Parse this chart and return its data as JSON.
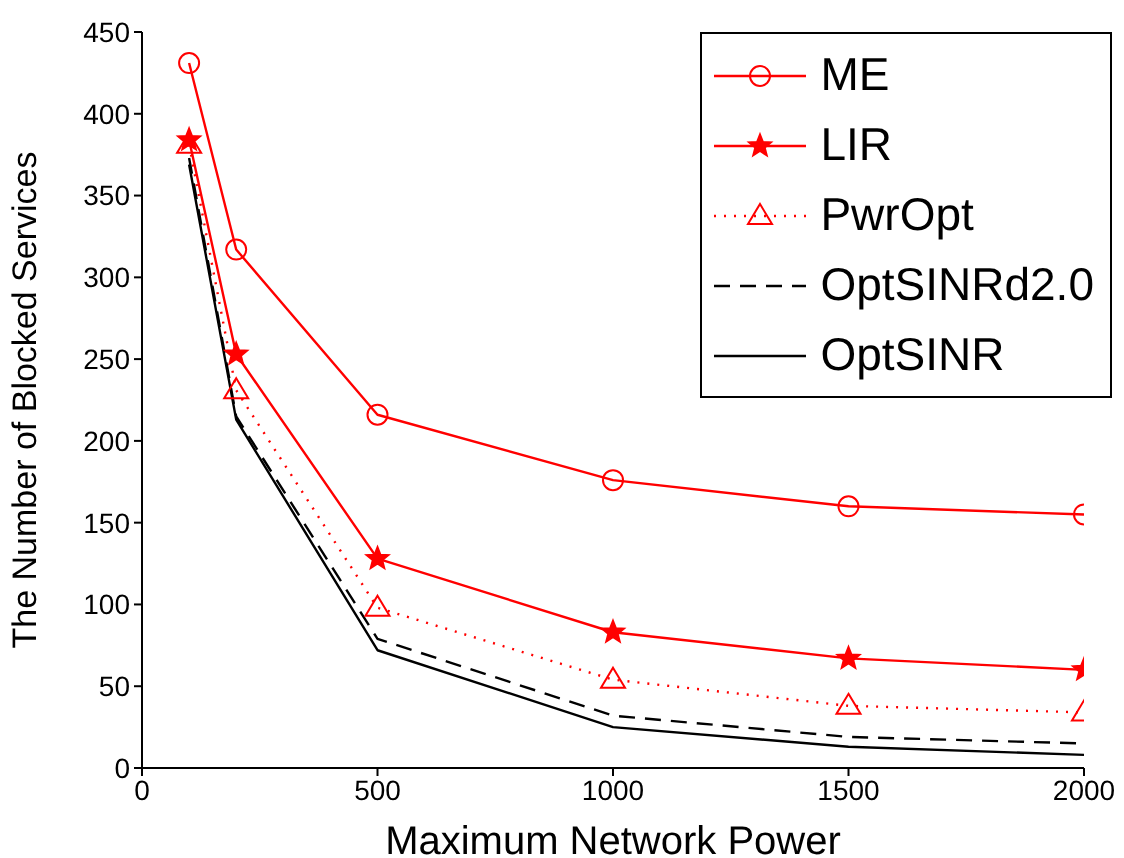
{
  "chart_data": {
    "type": "line",
    "xlabel": "Maximum Network Power",
    "ylabel": "The Number of Blocked Services",
    "x": [
      100,
      200,
      500,
      1000,
      1500,
      2000
    ],
    "xlim": [
      0,
      2000
    ],
    "xticks": [
      0,
      500,
      1000,
      1500,
      2000
    ],
    "ylim": [
      0,
      450
    ],
    "yticks": [
      0,
      50,
      100,
      150,
      200,
      250,
      300,
      350,
      400,
      450
    ],
    "grid": false,
    "legend": "top right",
    "series": [
      {
        "name": "ME",
        "color": "#ff0000",
        "marker": "circle",
        "line_style": "solid",
        "values": [
          431,
          317,
          216,
          176,
          160,
          155
        ]
      },
      {
        "name": "LIR",
        "color": "#ff0000",
        "marker": "star",
        "line_style": "solid",
        "values": [
          384,
          253,
          128,
          83,
          67,
          60
        ]
      },
      {
        "name": "PwrOpt",
        "color": "#ff0000",
        "marker": "triangle",
        "line_style": "dotted",
        "values": [
          381,
          231,
          98,
          54,
          38,
          34
        ]
      },
      {
        "name": "OptSINRd2.0",
        "color": "#000000",
        "marker": "none",
        "line_style": "dashed",
        "values": [
          373,
          215,
          79,
          32,
          19,
          15
        ]
      },
      {
        "name": "OptSINR",
        "color": "#000000",
        "marker": "none",
        "line_style": "solid",
        "values": [
          369,
          213,
          72,
          25,
          13,
          8
        ]
      }
    ]
  }
}
